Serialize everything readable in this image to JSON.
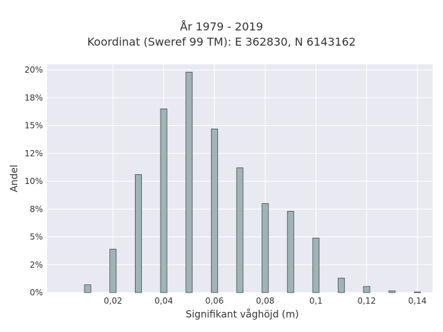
{
  "chart_data": {
    "type": "bar",
    "title": "År 1979 - 2019",
    "subtitle": "Koordinat (Sweref 99 TM): E 362830, N 6143162",
    "xlabel": "Signifikant våghöjd (m)",
    "ylabel": "Andel",
    "x": [
      0.01,
      0.02,
      0.03,
      0.04,
      0.05,
      0.06,
      0.07,
      0.08,
      0.09,
      0.1,
      0.11,
      0.12,
      0.13,
      0.14
    ],
    "values": [
      0.7,
      3.9,
      10.6,
      16.5,
      19.8,
      14.7,
      11.2,
      8.0,
      7.3,
      4.9,
      1.3,
      0.55,
      0.15,
      0.05
    ],
    "xlim": [
      -0.006,
      0.146
    ],
    "ylim": [
      0,
      20.5
    ],
    "x_ticks": [
      0.02,
      0.04,
      0.06,
      0.08,
      0.1,
      0.12,
      0.14
    ],
    "x_tick_labels": [
      "0,02",
      "0,04",
      "0,06",
      "0,08",
      "0,1",
      "0,12",
      "0,14"
    ],
    "y_ticks": [
      0,
      2.5,
      5,
      7.5,
      10,
      12.5,
      15,
      17.5,
      20
    ],
    "y_tick_labels": [
      "0%",
      "2%",
      "5%",
      "8%",
      "10%",
      "12%",
      "15%",
      "18%",
      "20%"
    ],
    "grid": true,
    "colors": {
      "bar_fill": "#a0b4b4",
      "bar_stroke": "#3a4a4a",
      "plot_bg": "#e9e9f1",
      "grid": "#ffffff"
    }
  }
}
